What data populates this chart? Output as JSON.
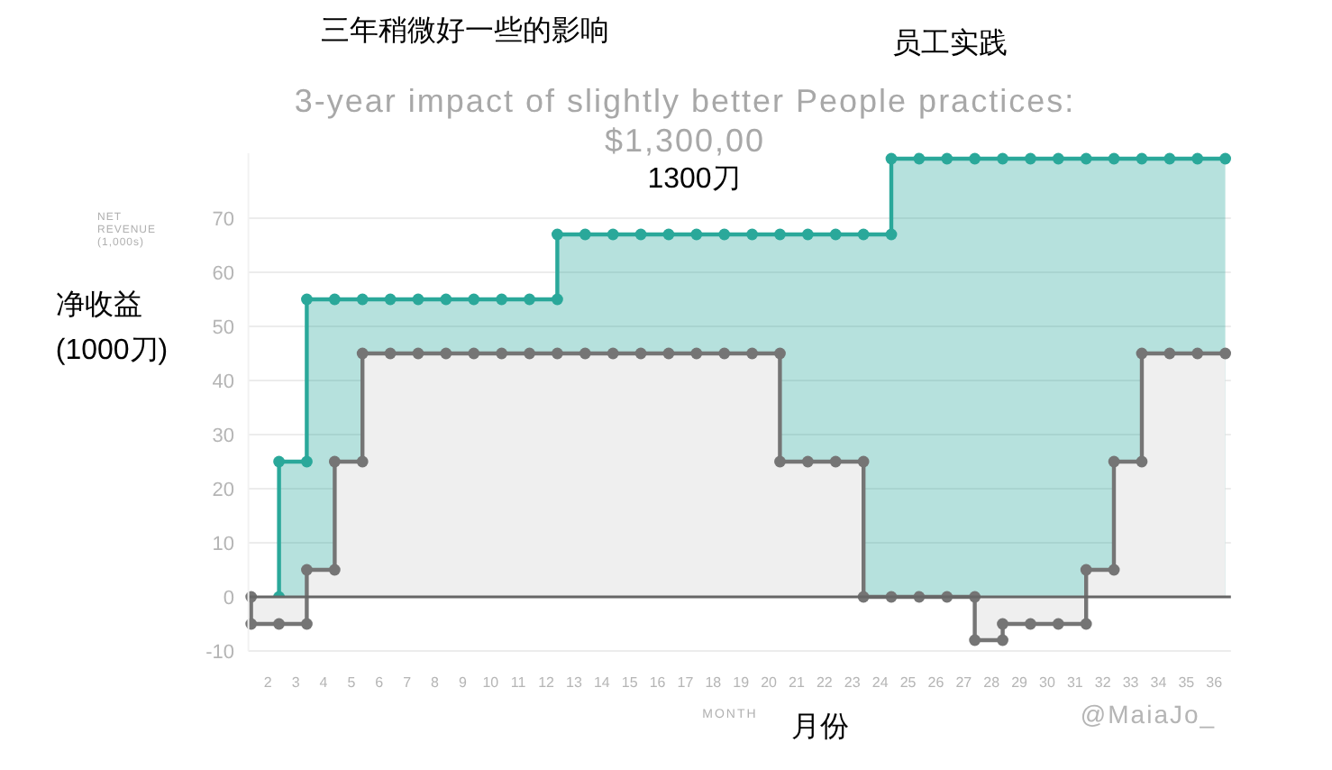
{
  "chart_data": {
    "type": "area",
    "title": "3-year impact of slightly better People practices:",
    "subtitle": "$1,300,00",
    "xlabel": "MONTH",
    "ylabel": "NET REVENUE (1,000s)",
    "annotations": [
      "三年稍微好一些的影响",
      "员工实践",
      "1300刀",
      "净收益",
      "(1000刀)",
      "月份",
      "@MaiaJo_"
    ],
    "series": [
      {
        "color": "#2aa89a",
        "x": [
          2.4,
          2.4,
          3.4,
          3.4,
          4.4,
          5.4,
          6.4,
          7.4,
          8.4,
          9.4,
          10.4,
          11.4,
          12.4,
          12.4,
          13.4,
          14.4,
          15.4,
          16.4,
          17.4,
          18.4,
          19.4,
          20.4,
          21.4,
          22.4,
          23.4,
          24.4,
          24.4,
          25.4,
          26.4,
          27.4,
          28.4,
          29.4,
          30.4,
          31.4,
          32.4,
          33.4,
          34.4,
          35.4,
          36.4
        ],
        "values": [
          0,
          25,
          25,
          55,
          55,
          55,
          55,
          55,
          55,
          55,
          55,
          55,
          55,
          67,
          67,
          67,
          67,
          67,
          67,
          67,
          67,
          67,
          67,
          67,
          67,
          67,
          81,
          81,
          81,
          81,
          81,
          81,
          81,
          81,
          81,
          81,
          81,
          81,
          81
        ]
      },
      {
        "color": "#757575",
        "x": [
          1.4,
          1.4,
          2.4,
          3.4,
          3.4,
          4.4,
          4.4,
          5.4,
          5.4,
          6.4,
          7.4,
          8.4,
          9.4,
          10.4,
          11.4,
          12.4,
          13.4,
          14.4,
          15.4,
          16.4,
          17.4,
          18.4,
          19.4,
          20.4,
          20.4,
          21.4,
          22.4,
          23.4,
          23.4,
          24.4,
          25.4,
          26.4,
          27.4,
          27.4,
          28.4,
          28.4,
          29.4,
          30.4,
          31.4,
          31.4,
          32.4,
          32.4,
          33.4,
          33.4,
          34.4,
          35.4,
          36.4
        ],
        "values": [
          0,
          -5,
          -5,
          -5,
          5,
          5,
          25,
          25,
          45,
          45,
          45,
          45,
          45,
          45,
          45,
          45,
          45,
          45,
          45,
          45,
          45,
          45,
          45,
          45,
          25,
          25,
          25,
          25,
          0,
          0,
          0,
          0,
          0,
          -8,
          -8,
          -5,
          -5,
          -5,
          -5,
          5,
          5,
          25,
          25,
          45,
          45,
          45,
          45
        ]
      }
    ],
    "xlim": [
      1.3,
      36.6
    ],
    "xticks": [
      2,
      3,
      4,
      5,
      6,
      7,
      8,
      9,
      10,
      11,
      12,
      13,
      14,
      15,
      16,
      17,
      18,
      19,
      20,
      21,
      22,
      23,
      24,
      25,
      26,
      27,
      28,
      29,
      30,
      31,
      32,
      33,
      34,
      35,
      36
    ],
    "ylim": [
      -10,
      82
    ],
    "yticks": [
      -10,
      0,
      10,
      20,
      30,
      40,
      50,
      60,
      70
    ],
    "grid": "y",
    "marker": "circle",
    "line_style": "solid"
  }
}
